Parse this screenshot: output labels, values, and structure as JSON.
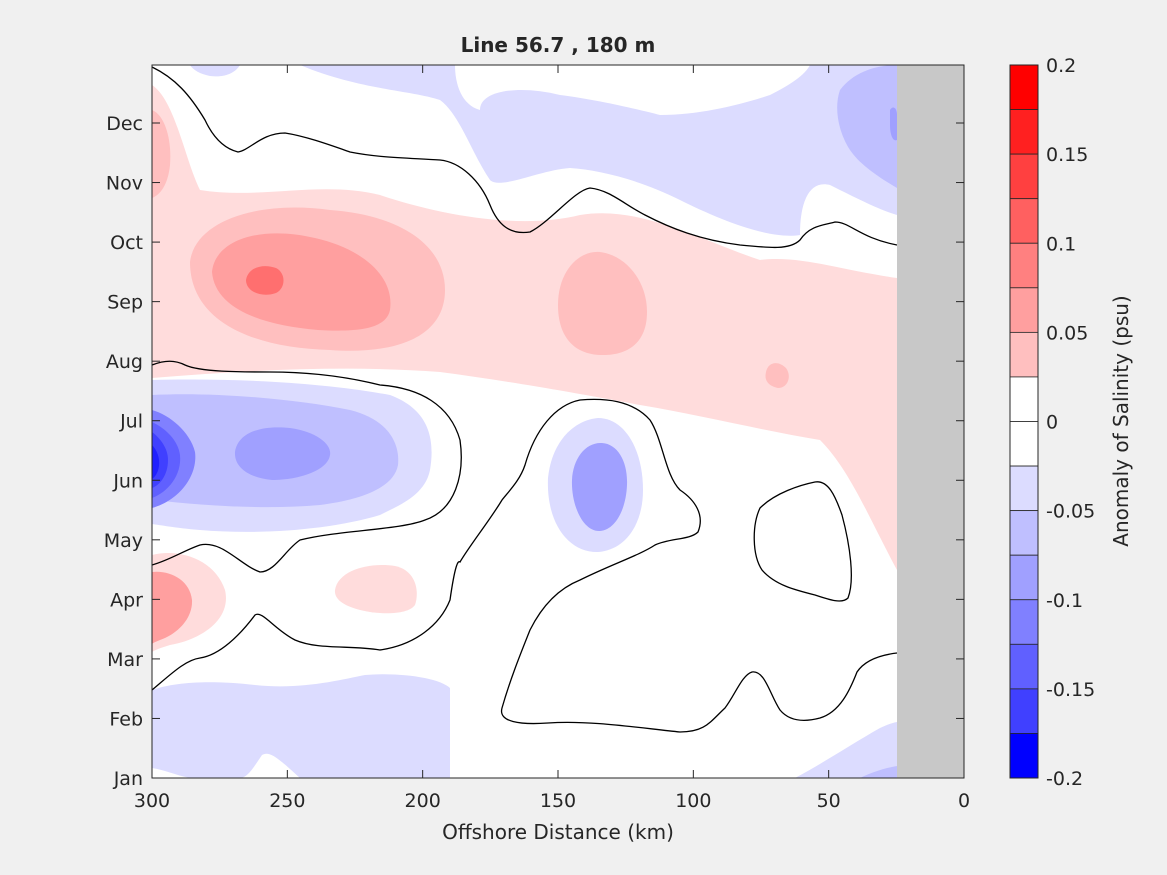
{
  "chart_data": {
    "type": "contour",
    "title": "Line 56.7 , 180 m",
    "xlabel": "Offshore Distance (km)",
    "xlim": [
      300,
      0
    ],
    "xticks": [
      300,
      250,
      200,
      150,
      100,
      50,
      0
    ],
    "xtick_labels": [
      "300",
      "250",
      "200",
      "150",
      "100",
      "50",
      "0"
    ],
    "yticks": [
      "Jan",
      "Feb",
      "Mar",
      "Apr",
      "May",
      "Jun",
      "Jul",
      "Aug",
      "Sep",
      "Oct",
      "Nov",
      "Dec"
    ],
    "no_data_region_km": [
      25,
      0
    ],
    "colorbar": {
      "label": "Anomaly of Salinity (psu)",
      "range": [
        -0.2,
        0.2
      ],
      "ticks": [
        0.2,
        0.15,
        0.1,
        0.05,
        0,
        -0.05,
        -0.1,
        -0.15,
        -0.2
      ],
      "tick_labels": [
        "0.2",
        "0.15",
        "0.1",
        "0.05",
        "0",
        "-0.05",
        "-0.1",
        "-0.15",
        "-0.2"
      ],
      "levels": [
        -0.2,
        -0.175,
        -0.15,
        -0.125,
        -0.1,
        -0.075,
        -0.05,
        -0.025,
        0,
        0.025,
        0.05,
        0.075,
        0.1,
        0.125,
        0.15,
        0.175,
        0.2
      ],
      "colors": [
        "#0000ff",
        "#2020ff",
        "#4040ff",
        "#6060ff",
        "#8080ff",
        "#a0a0ff",
        "#bfbfff",
        "#dcdcff",
        "#ffffff",
        "#ffffff",
        "#ffdcdc",
        "#ffbfbf",
        "#ff9f9f",
        "#ff8080",
        "#ff6060",
        "#ff4040",
        "#ff2020",
        "#ff0000"
      ]
    },
    "anomaly_features": [
      {
        "x_km": 258,
        "month": "Sep",
        "value": 0.125,
        "sign": "positive"
      },
      {
        "x_km": 135,
        "month": "Sep",
        "value": 0.075,
        "sign": "positive"
      },
      {
        "x_km": 295,
        "month": "Apr",
        "value": 0.1,
        "sign": "positive"
      },
      {
        "x_km": 215,
        "month": "Apr",
        "value": 0.05,
        "sign": "positive"
      },
      {
        "x_km": 70,
        "month": "Aug",
        "value": 0.075,
        "sign": "positive"
      },
      {
        "x_km": 298,
        "month": "Jun",
        "value": -0.175,
        "sign": "negative"
      },
      {
        "x_km": 255,
        "month": "Jun",
        "value": -0.1,
        "sign": "negative"
      },
      {
        "x_km": 135,
        "month": "Jun",
        "value": -0.075,
        "sign": "negative"
      },
      {
        "x_km": 30,
        "month": "Dec",
        "value": -0.075,
        "sign": "negative"
      },
      {
        "x_km": 245,
        "month": "Feb",
        "value": -0.05,
        "sign": "negative"
      }
    ]
  }
}
